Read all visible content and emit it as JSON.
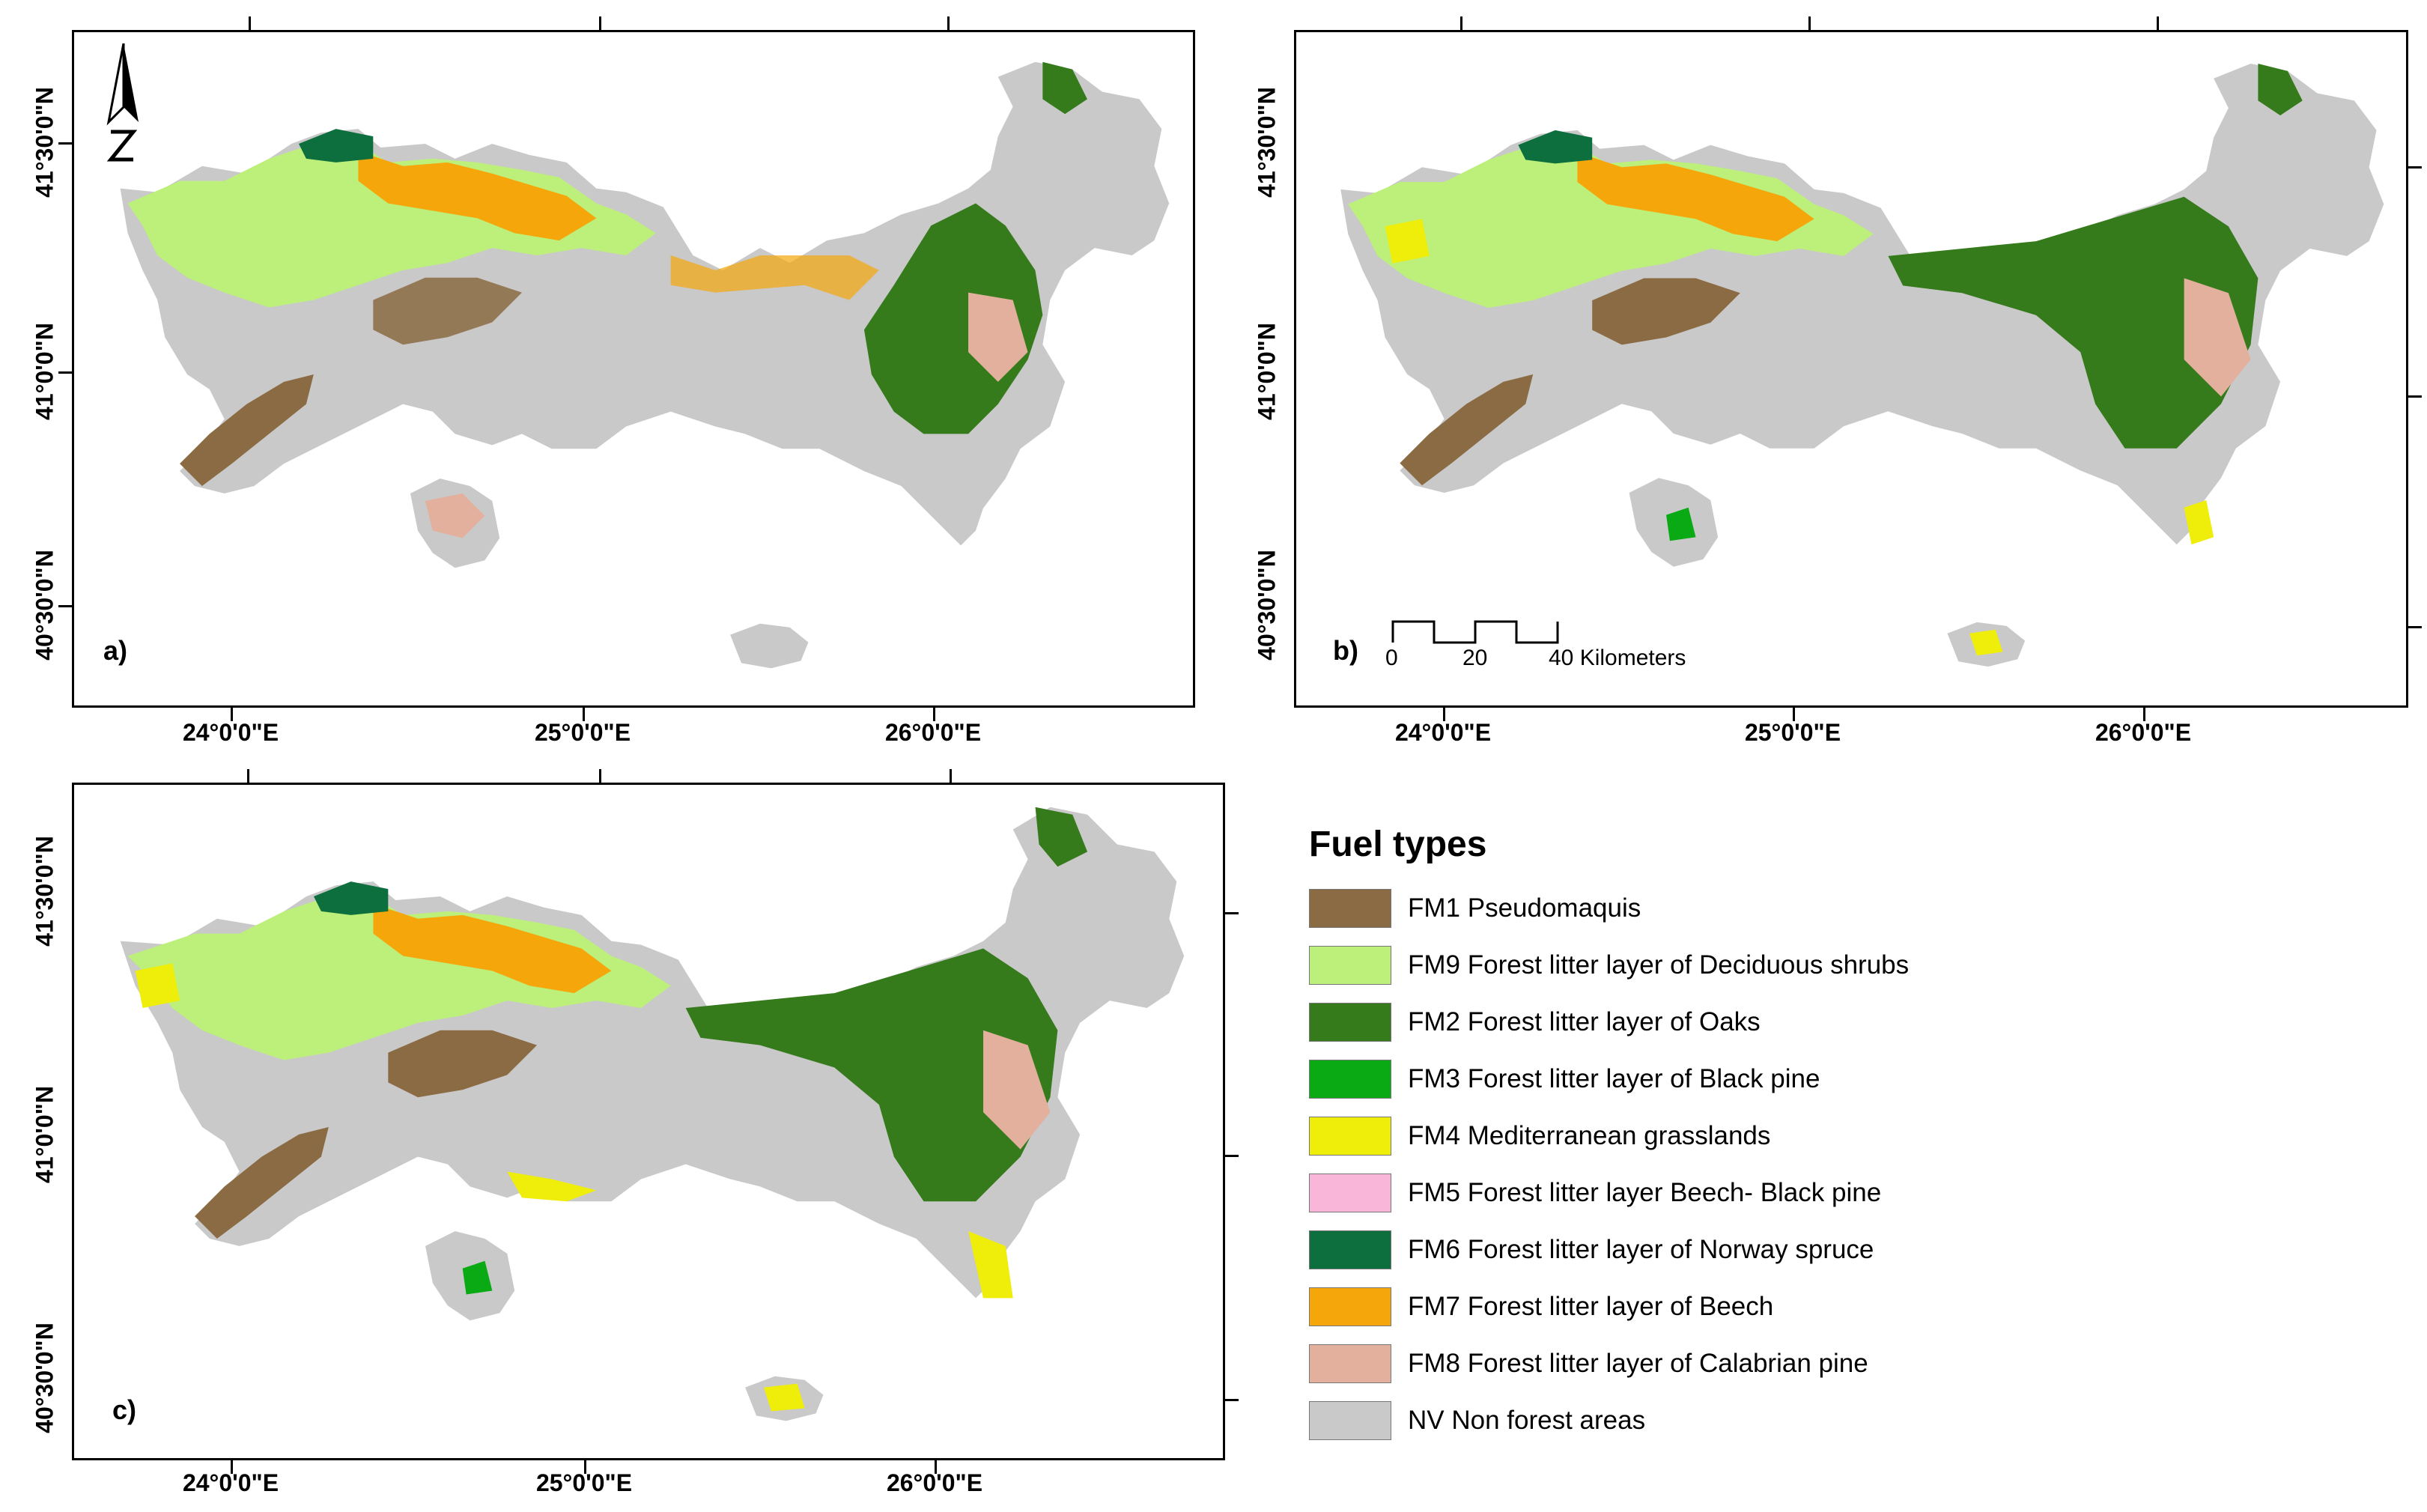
{
  "panels": [
    {
      "label": "a)"
    },
    {
      "label": "b)"
    },
    {
      "label": "c)"
    }
  ],
  "axes": {
    "lon_labels": [
      "24°0'0\"E",
      "25°0'0\"E",
      "26°0'0\"E"
    ],
    "lat_labels": [
      "41°30'0\"N",
      "41°0'0\"N",
      "40°30'0\"N"
    ]
  },
  "scale_bar": {
    "tick0": "0",
    "tick1": "20",
    "tick2": "40 Kilometers"
  },
  "legend": {
    "title": "Fuel types",
    "items": [
      {
        "label": "FM1  Pseudomaquis",
        "color": "#8B6B43"
      },
      {
        "label": "FM9 Forest litter layer of  Deciduous shrubs",
        "color": "#BDF07A"
      },
      {
        "label": "FM2  Forest litter layer of Oaks",
        "color": "#357A1B"
      },
      {
        "label": "FM3  Forest litter layer of Black pine",
        "color": "#0AAA14"
      },
      {
        "label": "FM4 Mediterranean grasslands",
        "color": "#EEEE0A"
      },
      {
        "label": "FM5 Forest litter layer Beech- Black pine",
        "color": "#F9B6D8"
      },
      {
        "label": "FM6 Forest litter layer of Norway spruce",
        "color": "#0D6E3E"
      },
      {
        "label": "FM7 Forest litter layer of  Beech",
        "color": "#F5A60A"
      },
      {
        "label": "FM8 Forest litter layer of Calabrian pine",
        "color": "#E2B09C"
      },
      {
        "label": "NV Non forest areas",
        "color": "#C9C9C9"
      }
    ]
  }
}
